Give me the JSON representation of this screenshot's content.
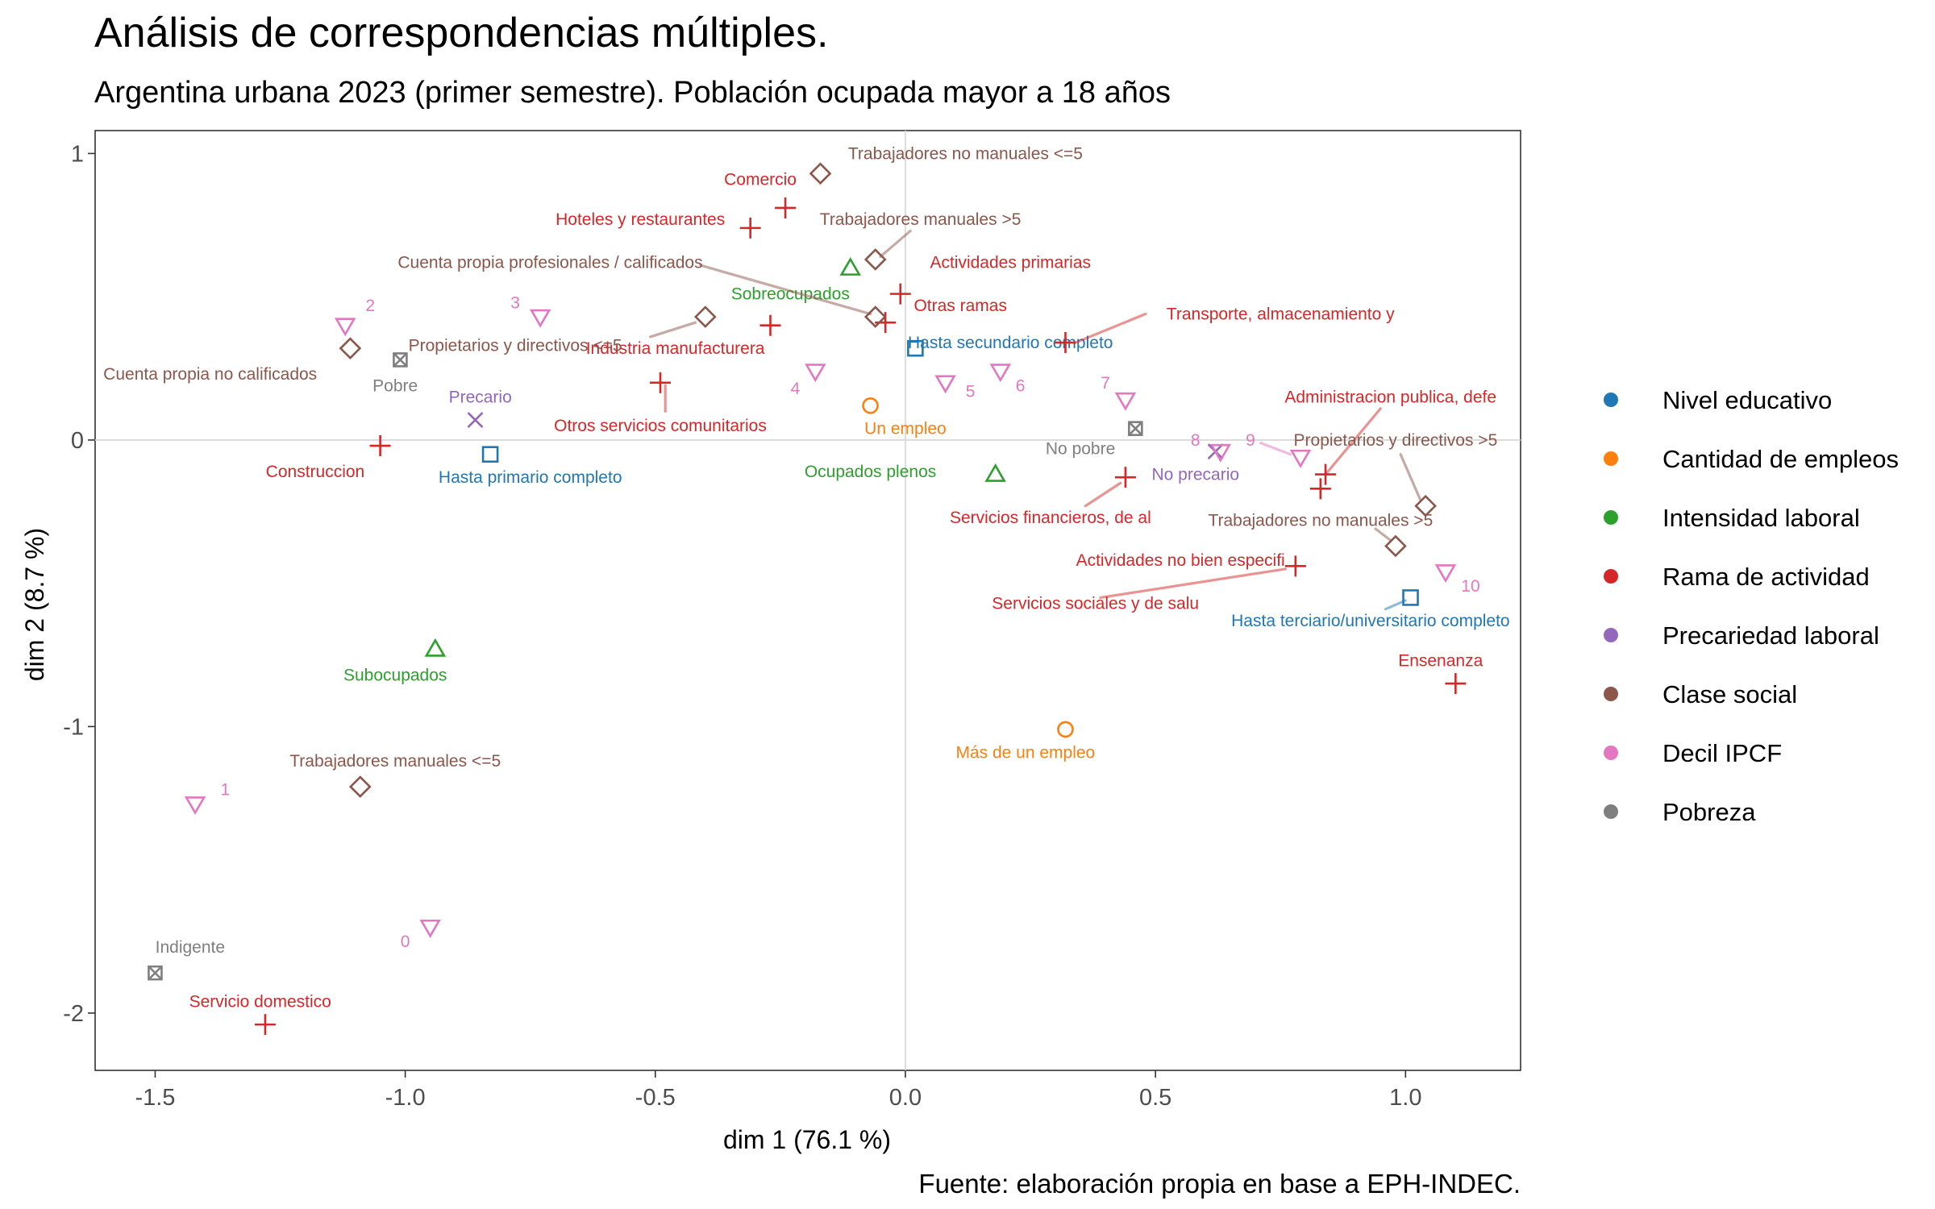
{
  "chart_data": {
    "type": "scatter",
    "title": "Análisis de correspondencias múltiples.",
    "subtitle": "Argentina urbana 2023 (primer semestre). Población ocupada mayor a 18 años",
    "caption": "Fuente: elaboración propia en base a EPH-INDEC.",
    "xlabel": "dim 1 (76.1 %)",
    "ylabel": "dim 2 (8.7 %)",
    "xlim": [
      -1.62,
      1.23
    ],
    "ylim": [
      -2.2,
      1.08
    ],
    "x_ticks": [
      -1.5,
      -1.0,
      -0.5,
      0.0,
      0.5,
      1.0
    ],
    "x_tick_labels": [
      "-1.5",
      "-1.0",
      "-0.5",
      "0.0",
      "0.5",
      "1.0"
    ],
    "y_ticks": [
      -2,
      -1,
      0,
      1
    ],
    "y_tick_labels": [
      "-2",
      "-1",
      "0",
      "1"
    ],
    "grid": false,
    "reference_lines": {
      "x": 0,
      "y": 0
    },
    "legend_position": "right",
    "series": [
      {
        "name": "Nivel educativo",
        "color": "#1f77b4",
        "shape": "square",
        "points": [
          {
            "label": "Hasta primario completo",
            "x": -0.83,
            "y": -0.05,
            "lx": -0.75,
            "ly": -0.13
          },
          {
            "label": "Hasta secundario completo",
            "x": 0.02,
            "y": 0.32,
            "lx": 0.21,
            "ly": 0.34
          },
          {
            "label": "Hasta terciario/universitario completo",
            "x": 1.01,
            "y": -0.55,
            "lx": 0.93,
            "ly": -0.63,
            "seg": [
              [
                0.96,
                -0.59
              ],
              [
                1.0,
                -0.56
              ]
            ]
          }
        ]
      },
      {
        "name": "Cantidad de empleos",
        "color": "#ff7f0e",
        "shape": "circle",
        "points": [
          {
            "label": "Un empleo",
            "x": -0.07,
            "y": 0.12,
            "lx": 0.0,
            "ly": 0.04
          },
          {
            "label": "Más de un empleo",
            "x": 0.32,
            "y": -1.01,
            "lx": 0.24,
            "ly": -1.09
          }
        ]
      },
      {
        "name": "Intensidad laboral",
        "color": "#2ca02c",
        "shape": "triangle-up",
        "points": [
          {
            "label": "Sobreocupados",
            "x": -0.11,
            "y": 0.6,
            "lx": -0.23,
            "ly": 0.51
          },
          {
            "label": "Ocupados plenos",
            "x": 0.18,
            "y": -0.12,
            "lx": -0.07,
            "ly": -0.11
          },
          {
            "label": "Subocupados",
            "x": -0.94,
            "y": -0.73,
            "lx": -1.02,
            "ly": -0.82
          }
        ]
      },
      {
        "name": "Rama de actividad",
        "color": "#d62728",
        "shape": "plus",
        "points": [
          {
            "label": "Comercio",
            "x": -0.24,
            "y": 0.81,
            "lx": -0.29,
            "ly": 0.91
          },
          {
            "label": "Hoteles y restaurantes",
            "x": -0.31,
            "y": 0.74,
            "lx": -0.53,
            "ly": 0.77
          },
          {
            "label": "Actividades primarias",
            "x": -0.01,
            "y": 0.51,
            "lx": 0.21,
            "ly": 0.62
          },
          {
            "label": "Otras ramas",
            "x": -0.04,
            "y": 0.41,
            "lx": 0.11,
            "ly": 0.47
          },
          {
            "label": "Industria manufacturera",
            "x": -0.27,
            "y": 0.4,
            "lx": -0.46,
            "ly": 0.32
          },
          {
            "label": "Transporte, almacenamiento y",
            "x": 0.32,
            "y": 0.34,
            "lx": 0.75,
            "ly": 0.44,
            "seg": [
              [
                0.34,
                0.34
              ],
              [
                0.48,
                0.44
              ]
            ]
          },
          {
            "label": "Otros servicios comunitarios",
            "x": -0.49,
            "y": 0.2,
            "lx": -0.49,
            "ly": 0.05,
            "seg": [
              [
                -0.48,
                0.19
              ],
              [
                -0.48,
                0.1
              ]
            ]
          },
          {
            "label": "Construccion",
            "x": -1.05,
            "y": -0.02,
            "lx": -1.18,
            "ly": -0.11
          },
          {
            "label": "Administracion publica, defe",
            "x": 0.84,
            "y": -0.12,
            "lx": 0.97,
            "ly": 0.15,
            "seg": [
              [
                0.84,
                -0.12
              ],
              [
                0.95,
                0.11
              ]
            ]
          },
          {
            "label": "Actividades no bien especifi",
            "x": 0.83,
            "y": -0.17,
            "lx": 0.55,
            "ly": -0.42
          },
          {
            "label": "Servicios financieros, de al",
            "x": 0.44,
            "y": -0.13,
            "lx": 0.29,
            "ly": -0.27,
            "seg": [
              [
                0.43,
                -0.15
              ],
              [
                0.36,
                -0.23
              ]
            ]
          },
          {
            "label": "Servicios sociales y de salu",
            "x": 0.78,
            "y": -0.44,
            "lx": 0.38,
            "ly": -0.57,
            "seg": [
              [
                0.76,
                -0.45
              ],
              [
                0.39,
                -0.55
              ]
            ]
          },
          {
            "label": "Ensenanza",
            "x": 1.1,
            "y": -0.85,
            "lx": 1.07,
            "ly": -0.77
          },
          {
            "label": "Servicio domestico",
            "x": -1.28,
            "y": -2.04,
            "lx": -1.29,
            "ly": -1.96
          }
        ]
      },
      {
        "name": "Precariedad laboral",
        "color": "#9467bd",
        "shape": "cross",
        "points": [
          {
            "label": "Precario",
            "x": -0.86,
            "y": 0.07,
            "lx": -0.85,
            "ly": 0.15
          },
          {
            "label": "No precario",
            "x": 0.62,
            "y": -0.04,
            "lx": 0.58,
            "ly": -0.12
          }
        ]
      },
      {
        "name": "Clase social",
        "color": "#8c564b",
        "shape": "diamond",
        "points": [
          {
            "label": "Trabajadores no manuales <=5",
            "x": -0.17,
            "y": 0.93,
            "lx": 0.12,
            "ly": 1.0
          },
          {
            "label": "Trabajadores manuales >5",
            "x": -0.06,
            "y": 0.63,
            "lx": 0.03,
            "ly": 0.77,
            "seg": [
              [
                -0.05,
                0.64
              ],
              [
                0.01,
                0.73
              ]
            ]
          },
          {
            "label": "Cuenta propia profesionales / calificados",
            "x": -0.06,
            "y": 0.43,
            "lx": -0.71,
            "ly": 0.62,
            "seg": [
              [
                -0.07,
                0.44
              ],
              [
                -0.41,
                0.61
              ]
            ]
          },
          {
            "label": "Propietarios y directivos <=5",
            "x": -0.4,
            "y": 0.43,
            "lx": -0.78,
            "ly": 0.33,
            "seg": [
              [
                -0.42,
                0.41
              ],
              [
                -0.51,
                0.36
              ]
            ]
          },
          {
            "label": "Cuenta propia no calificados",
            "x": -1.11,
            "y": 0.32,
            "lx": -1.39,
            "ly": 0.23
          },
          {
            "label": "Propietarios y directivos >5",
            "x": 1.04,
            "y": -0.23,
            "lx": 0.98,
            "ly": 0.0,
            "seg": [
              [
                1.03,
                -0.21
              ],
              [
                0.99,
                -0.05
              ]
            ]
          },
          {
            "label": "Trabajadores no manuales >5",
            "x": 0.98,
            "y": -0.37,
            "lx": 0.83,
            "ly": -0.28,
            "seg": [
              [
                0.97,
                -0.35
              ],
              [
                0.94,
                -0.31
              ]
            ]
          },
          {
            "label": "Trabajadores manuales <=5",
            "x": -1.09,
            "y": -1.21,
            "lx": -1.02,
            "ly": -1.12
          }
        ]
      },
      {
        "name": "Decil IPCF",
        "color": "#e377c2",
        "shape": "triangle-down",
        "points": [
          {
            "label": "2",
            "x": -1.12,
            "y": 0.4,
            "lx": -1.07,
            "ly": 0.47
          },
          {
            "label": "3",
            "x": -0.73,
            "y": 0.43,
            "lx": -0.78,
            "ly": 0.48
          },
          {
            "label": "4",
            "x": -0.18,
            "y": 0.24,
            "lx": -0.22,
            "ly": 0.18
          },
          {
            "label": "5",
            "x": 0.08,
            "y": 0.2,
            "lx": 0.13,
            "ly": 0.17
          },
          {
            "label": "6",
            "x": 0.19,
            "y": 0.24,
            "lx": 0.23,
            "ly": 0.19
          },
          {
            "label": "7",
            "x": 0.44,
            "y": 0.14,
            "lx": 0.4,
            "ly": 0.2
          },
          {
            "label": "8",
            "x": 0.63,
            "y": -0.04,
            "lx": 0.58,
            "ly": 0.0
          },
          {
            "label": "9",
            "x": 0.79,
            "y": -0.06,
            "lx": 0.69,
            "ly": 0.0,
            "seg": [
              [
                0.77,
                -0.05
              ],
              [
                0.71,
                -0.01
              ]
            ]
          },
          {
            "label": "10",
            "x": 1.08,
            "y": -0.46,
            "lx": 1.13,
            "ly": -0.51
          },
          {
            "label": "1",
            "x": -1.42,
            "y": -1.27,
            "lx": -1.36,
            "ly": -1.22
          },
          {
            "label": "0",
            "x": -0.95,
            "y": -1.7,
            "lx": -1.0,
            "ly": -1.75
          }
        ]
      },
      {
        "name": "Pobreza",
        "color": "#7f7f7f",
        "shape": "square-x",
        "points": [
          {
            "label": "Pobre",
            "x": -1.01,
            "y": 0.28,
            "lx": -1.02,
            "ly": 0.19
          },
          {
            "label": "No pobre",
            "x": 0.46,
            "y": 0.04,
            "lx": 0.35,
            "ly": -0.03
          },
          {
            "label": "Indigente",
            "x": -1.5,
            "y": -1.86,
            "lx": -1.43,
            "ly": -1.77
          }
        ]
      }
    ]
  }
}
